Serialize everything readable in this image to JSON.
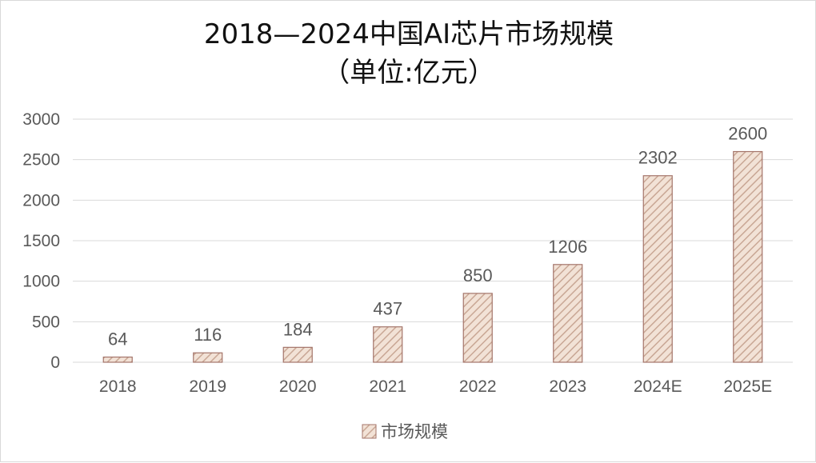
{
  "chart_data": {
    "type": "bar",
    "title": "2018—2024中国AI芯片市场规模",
    "subtitle": "（单位:亿元）",
    "categories": [
      "2018",
      "2019",
      "2020",
      "2021",
      "2022",
      "2023",
      "2024E",
      "2025E"
    ],
    "series": [
      {
        "name": "市场规模",
        "values": [
          64,
          116,
          184,
          437,
          850,
          1206,
          2302,
          2600
        ]
      }
    ],
    "ylim": [
      0,
      3000
    ],
    "yticks": [
      0,
      500,
      1000,
      1500,
      2000,
      2500,
      3000
    ],
    "grid": true,
    "legend_position": "bottom",
    "bar_fill": "#f2e2d6",
    "bar_hatch": "#c9a795",
    "bar_stroke": "#a4756a",
    "grid_color": "#d9d9d9",
    "axis_text_color": "#595959"
  }
}
